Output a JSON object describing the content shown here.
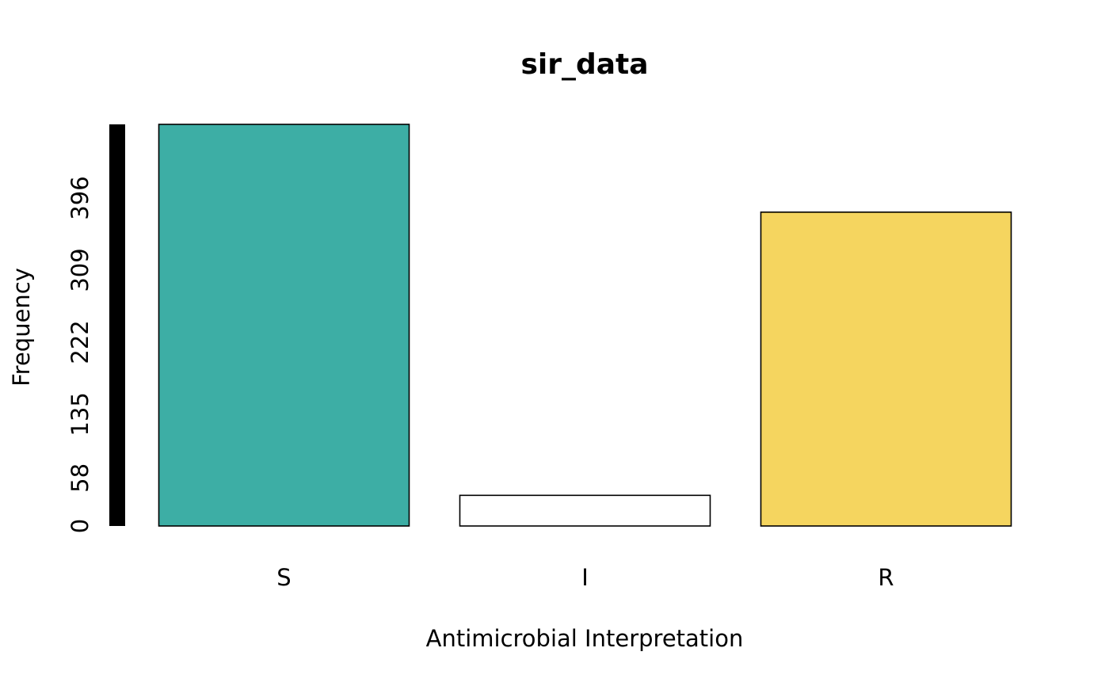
{
  "chart_data": {
    "type": "bar",
    "title": "sir_data",
    "xlabel": "Antimicrobial Interpretation",
    "ylabel": "Frequency",
    "categories": [
      "S",
      "I",
      "R"
    ],
    "values": [
      485,
      37,
      379
    ],
    "colors": [
      "#3DAEA5",
      "#FFFFFF",
      "#F5D55F"
    ],
    "yticks": [
      0,
      58,
      135,
      222,
      309,
      396
    ],
    "ylim": [
      0,
      485
    ],
    "grid": false,
    "legend": "none"
  }
}
